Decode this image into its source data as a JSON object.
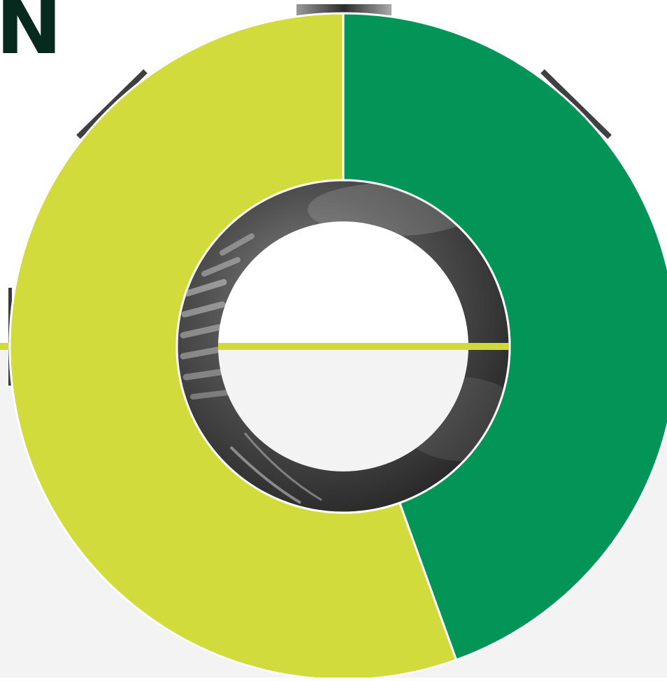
{
  "heading": {
    "text": "N"
  },
  "colors": {
    "background_upper": "#ffffff",
    "background_lower": "#f3f3f3",
    "accent_line": "#cedb3a",
    "heading": "#062a1e",
    "photo_ring": "#3a3a3a",
    "separator": "#ffffff"
  },
  "chart_data": {
    "type": "pie",
    "variant": "donut",
    "start_angle": "12 o'clock",
    "direction": "clockwise",
    "title": "",
    "slices": [
      {
        "name": "",
        "value": 44.5,
        "color": "#039557"
      },
      {
        "name": "",
        "value": 55.5,
        "color": "#d1db3b"
      }
    ],
    "center_image": "grayscale-industrial-photo"
  }
}
